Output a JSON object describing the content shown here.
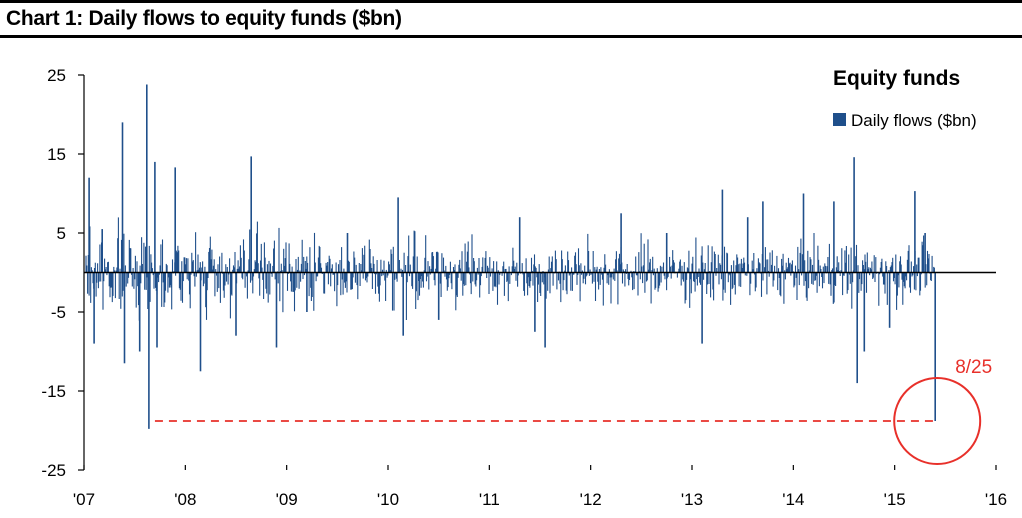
{
  "header": {
    "title": "Chart 1: Daily flows to equity funds ($bn)"
  },
  "colors": {
    "series": "#1f4f8b",
    "annotation": "#e8302a",
    "axis": "#000000"
  },
  "chart_data": {
    "type": "bar",
    "title": "Chart 1: Daily flows to equity funds ($bn)",
    "xlabel": "",
    "ylabel": "",
    "ylim": [
      -25,
      25
    ],
    "xlim": [
      2007.0,
      2016.0
    ],
    "y_ticks": [
      25,
      15,
      5,
      -5,
      -15,
      -25
    ],
    "y_tick_labels": [
      "25",
      "15",
      "5",
      "-5",
      "-15",
      "-25"
    ],
    "x_ticks": [
      2007,
      2008,
      2009,
      2010,
      2011,
      2012,
      2013,
      2014,
      2015,
      2016
    ],
    "x_tick_labels": [
      "'07",
      "'08",
      "'09",
      "'10",
      "'11",
      "'12",
      "'13",
      "'14",
      "'15",
      "'16"
    ],
    "legend": {
      "title": "Equity funds",
      "position": "top-right",
      "entries": [
        {
          "label": "Daily flows ($bn)",
          "color": "#1f4f8b"
        }
      ]
    },
    "series": [
      {
        "name": "Daily flows ($bn)",
        "points": [
          [
            2007.05,
            12.0
          ],
          [
            2007.1,
            -9.0
          ],
          [
            2007.18,
            5.5
          ],
          [
            2007.38,
            19.0
          ],
          [
            2007.4,
            -11.5
          ],
          [
            2007.55,
            -10.0
          ],
          [
            2007.62,
            23.8
          ],
          [
            2007.64,
            -19.8
          ],
          [
            2007.7,
            14.0
          ],
          [
            2007.72,
            -9.5
          ],
          [
            2007.9,
            13.3
          ],
          [
            2008.15,
            -12.5
          ],
          [
            2008.5,
            -8.0
          ],
          [
            2008.65,
            14.7
          ],
          [
            2008.9,
            -9.5
          ],
          [
            2009.2,
            -5.0
          ],
          [
            2009.6,
            5.0
          ],
          [
            2010.1,
            9.5
          ],
          [
            2010.15,
            -8.0
          ],
          [
            2010.5,
            -6.0
          ],
          [
            2011.3,
            7.0
          ],
          [
            2011.45,
            -7.5
          ],
          [
            2011.55,
            -9.5
          ],
          [
            2012.3,
            7.5
          ],
          [
            2012.75,
            5.0
          ],
          [
            2013.1,
            -9.0
          ],
          [
            2013.3,
            10.5
          ],
          [
            2013.55,
            7.0
          ],
          [
            2013.7,
            9.0
          ],
          [
            2014.1,
            10.0
          ],
          [
            2014.4,
            9.0
          ],
          [
            2014.6,
            14.6
          ],
          [
            2014.63,
            -14.0
          ],
          [
            2014.7,
            -10.0
          ],
          [
            2014.95,
            -7.0
          ],
          [
            2015.2,
            10.3
          ],
          [
            2015.3,
            5.0
          ],
          [
            2015.4,
            -18.8
          ]
        ]
      }
    ],
    "reference_line": {
      "y": -18.8,
      "style": "dashed",
      "color": "#e8302a"
    },
    "annotations": [
      {
        "text": "8/25",
        "x": 2015.4,
        "y": -18.8,
        "shape": "circle"
      }
    ]
  }
}
